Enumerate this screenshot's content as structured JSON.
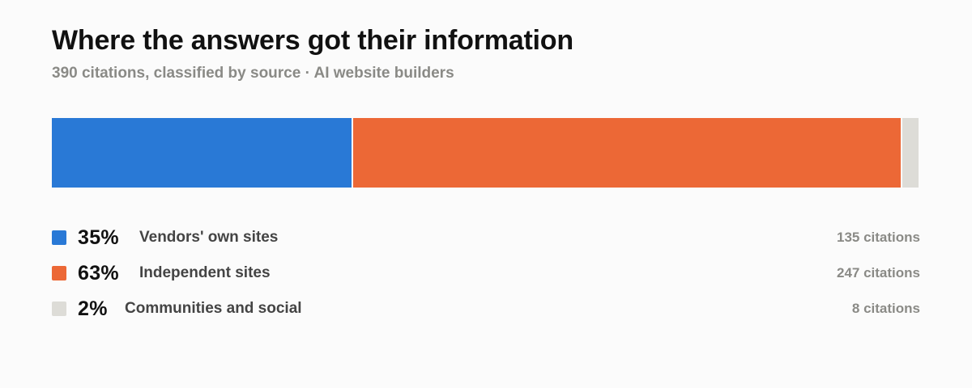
{
  "title": "Where the answers got their information",
  "subtitle": "390 citations, classified by source · AI website builders",
  "chart_data": {
    "type": "bar",
    "orientation": "horizontal-stacked",
    "total": 390,
    "series": [
      {
        "name": "Vendors' own sites",
        "pct_label": "35%",
        "value": 135,
        "count_label": "135 citations",
        "color": "#2979d6"
      },
      {
        "name": "Independent sites",
        "pct_label": "63%",
        "value": 247,
        "count_label": "247 citations",
        "color": "#ec6836"
      },
      {
        "name": "Communities and social",
        "pct_label": "2%",
        "value": 8,
        "count_label": "8 citations",
        "color": "#dddcd7"
      }
    ]
  }
}
